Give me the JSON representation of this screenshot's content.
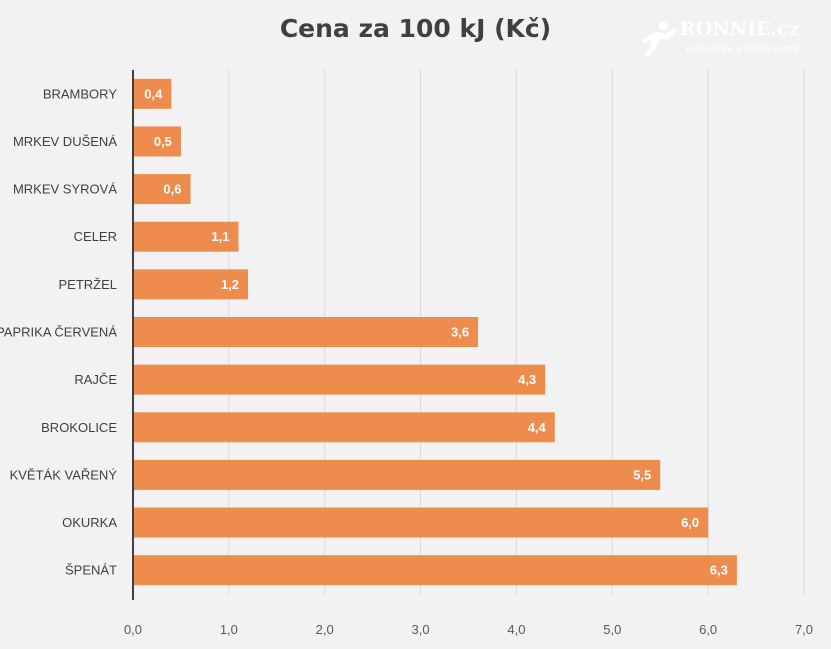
{
  "logo": {
    "brand": "RONNIE.cz",
    "tagline": "kulturistika a silové sporty"
  },
  "chart_data": {
    "type": "bar",
    "orientation": "horizontal",
    "title": "Cena za 100 kJ (Kč)",
    "categories": [
      "BRAMBORY",
      "MRKEV DUŠENÁ",
      "MRKEV SYROVÁ",
      "CELER",
      "PETRŽEL",
      "PAPRIKA ČERVENÁ",
      "RAJČE",
      "BROKOLICE",
      "KVĚTÁK VAŘENÝ",
      "OKURKA",
      "ŠPENÁT"
    ],
    "values": [
      0.4,
      0.5,
      0.6,
      1.1,
      1.2,
      3.6,
      4.3,
      4.4,
      5.5,
      6.0,
      6.3
    ],
    "value_labels": [
      "0,4",
      "0,5",
      "0,6",
      "1,1",
      "1,2",
      "3,6",
      "4,3",
      "4,4",
      "5,5",
      "6,0",
      "6,3"
    ],
    "xlim": [
      0,
      7
    ],
    "x_ticks": [
      "0,0",
      "1,0",
      "2,0",
      "3,0",
      "4,0",
      "5,0",
      "6,0",
      "7,0"
    ],
    "xlabel": "",
    "ylabel": "",
    "grid": true,
    "legend": "none",
    "bar_color": "#ed8c4d",
    "label_color": "#ffffff",
    "background_color": "#f2f2f2",
    "gridline_color": "#d9d9d9"
  }
}
